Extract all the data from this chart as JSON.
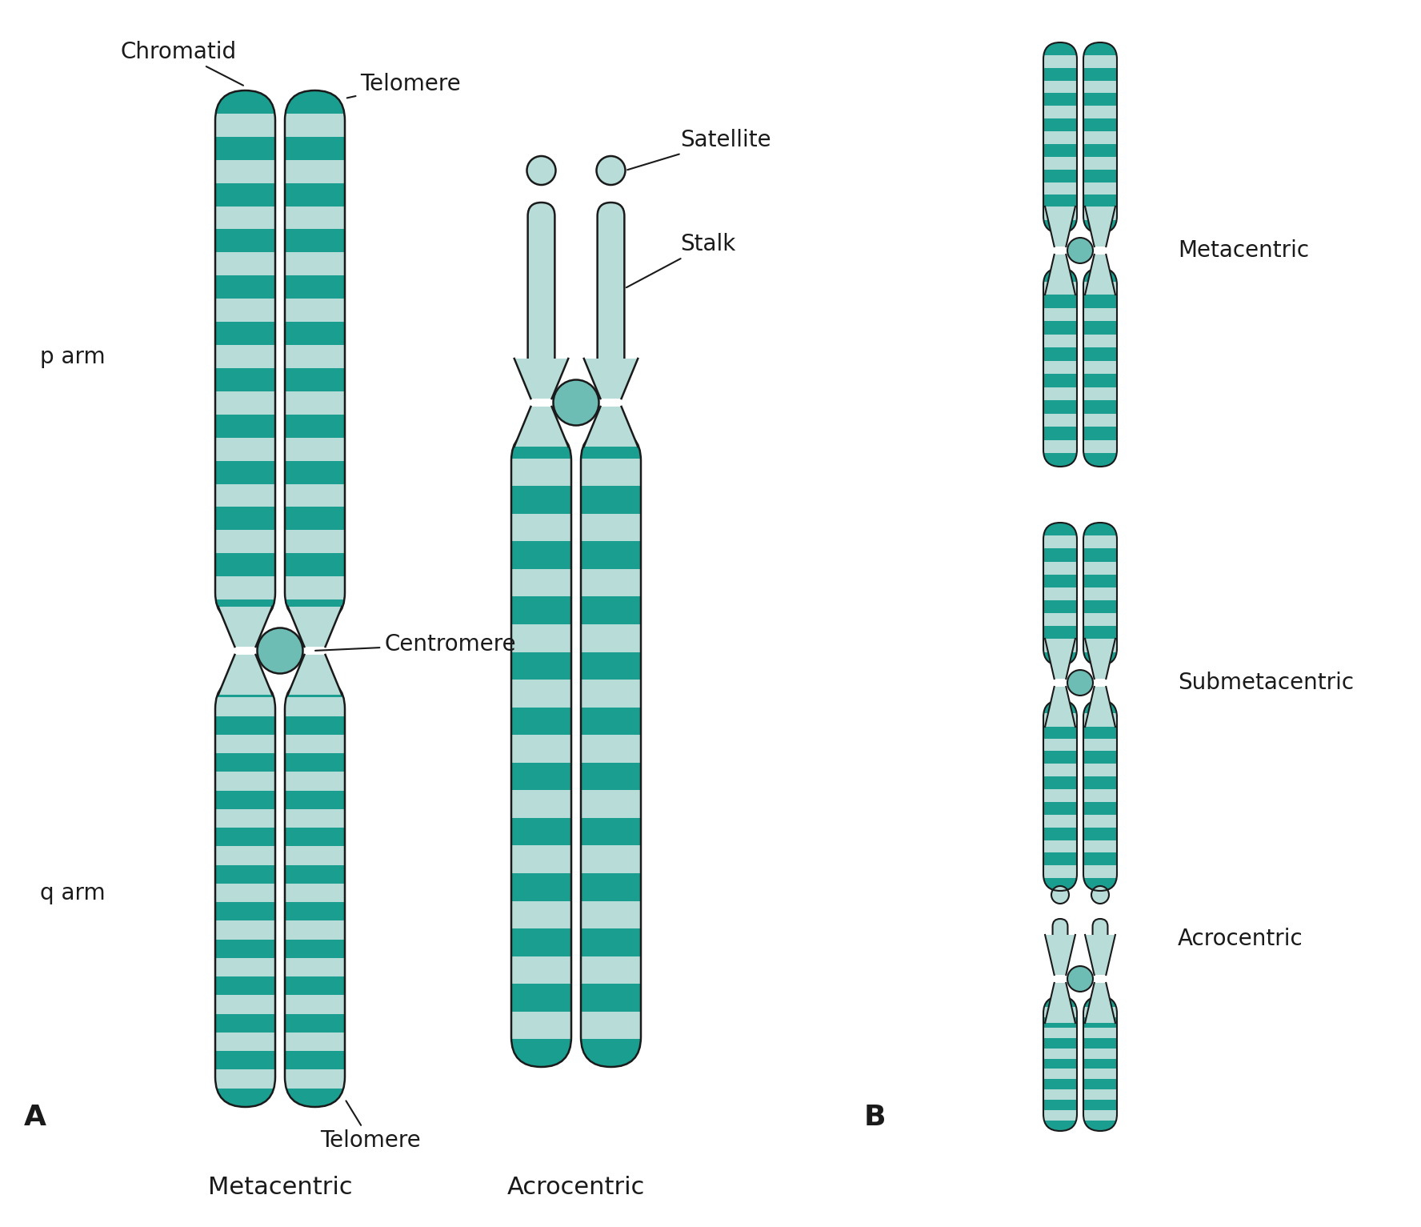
{
  "bg_color": "#ffffff",
  "teal_dark": "#1a9e8f",
  "teal_light": "#b8ddd9",
  "teal_mid": "#7ec8bf",
  "outline_color": "#1a1a1a",
  "label_color": "#1a1a1a",
  "stripe_dark": "#1a9e8f",
  "stripe_light": "#cce8e5",
  "centromere_color": "#6dbdb5",
  "labels": {
    "A": "A",
    "B": "B",
    "chromatid": "Chromatid",
    "telomere_top": "Telomere",
    "telomere_bot": "Telomere",
    "centromere": "Centromere",
    "p_arm": "p arm",
    "q_arm": "q arm",
    "satellite": "Satellite",
    "stalk": "Stalk",
    "metacentric_A": "Metacentric",
    "acrocentric_A": "Acrocentric",
    "metacentric_B": "Metacentric",
    "submetacentric_B": "Submetacentric",
    "acrocentric_B": "Acrocentric"
  },
  "font_size_label": 20,
  "font_size_AB": 24
}
